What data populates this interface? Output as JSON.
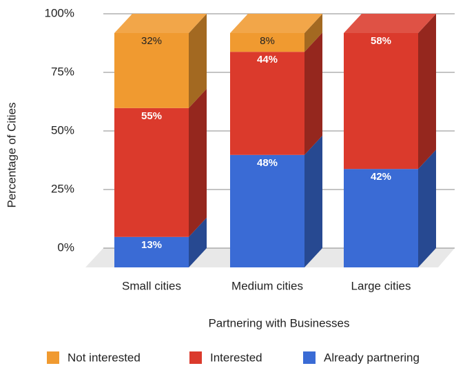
{
  "chart_data": {
    "type": "bar3d_stacked",
    "categories": [
      "Small cities",
      "Medium cities",
      "Large cities"
    ],
    "series": [
      {
        "name": "Already partnering",
        "color": "#3a6bd5",
        "values": [
          13,
          48,
          42
        ],
        "value_labels": [
          "13%",
          "48%",
          "42%"
        ]
      },
      {
        "name": "Interested",
        "color": "#db3a2c",
        "values": [
          55,
          44,
          58
        ],
        "value_labels": [
          "55%",
          "44%",
          "58%"
        ]
      },
      {
        "name": "Not interested",
        "color": "#f09a30",
        "values": [
          32,
          8,
          null
        ],
        "value_labels": [
          "32%",
          "8%",
          null
        ]
      }
    ],
    "xlabel": "Partnering with Businesses",
    "ylabel": "Percentage of Cities",
    "ylim": [
      0,
      100
    ],
    "yticks": [
      {
        "value": 0,
        "label": "0%"
      },
      {
        "value": 25,
        "label": "25%"
      },
      {
        "value": 50,
        "label": "50%"
      },
      {
        "value": 75,
        "label": "75%"
      },
      {
        "value": 100,
        "label": "100%"
      }
    ],
    "grid": true,
    "legend": "bottom"
  }
}
